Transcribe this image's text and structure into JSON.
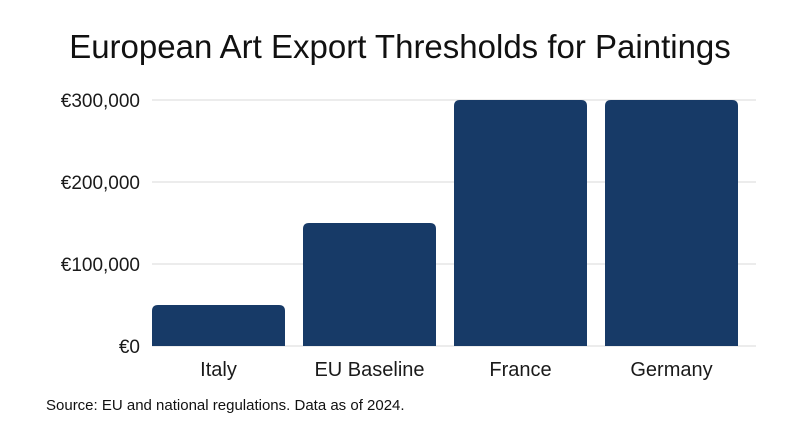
{
  "chart_data": {
    "type": "bar",
    "title": "European Art Export Thresholds for Paintings",
    "xlabel": "",
    "ylabel": "",
    "categories": [
      "Italy",
      "EU Baseline",
      "France",
      "Germany"
    ],
    "values": [
      50000,
      150000,
      300000,
      300000
    ],
    "ylim": [
      0,
      300000
    ],
    "yticks": [
      0,
      100000,
      200000,
      300000
    ],
    "ytick_labels": [
      "€0",
      "€100,000",
      "€200,000",
      "€300,000"
    ],
    "grid": true,
    "legend": "none",
    "bar_color": "#173A67",
    "grid_color": "#d9d9d9",
    "source": "Source: EU and national regulations. Data as of 2024."
  }
}
